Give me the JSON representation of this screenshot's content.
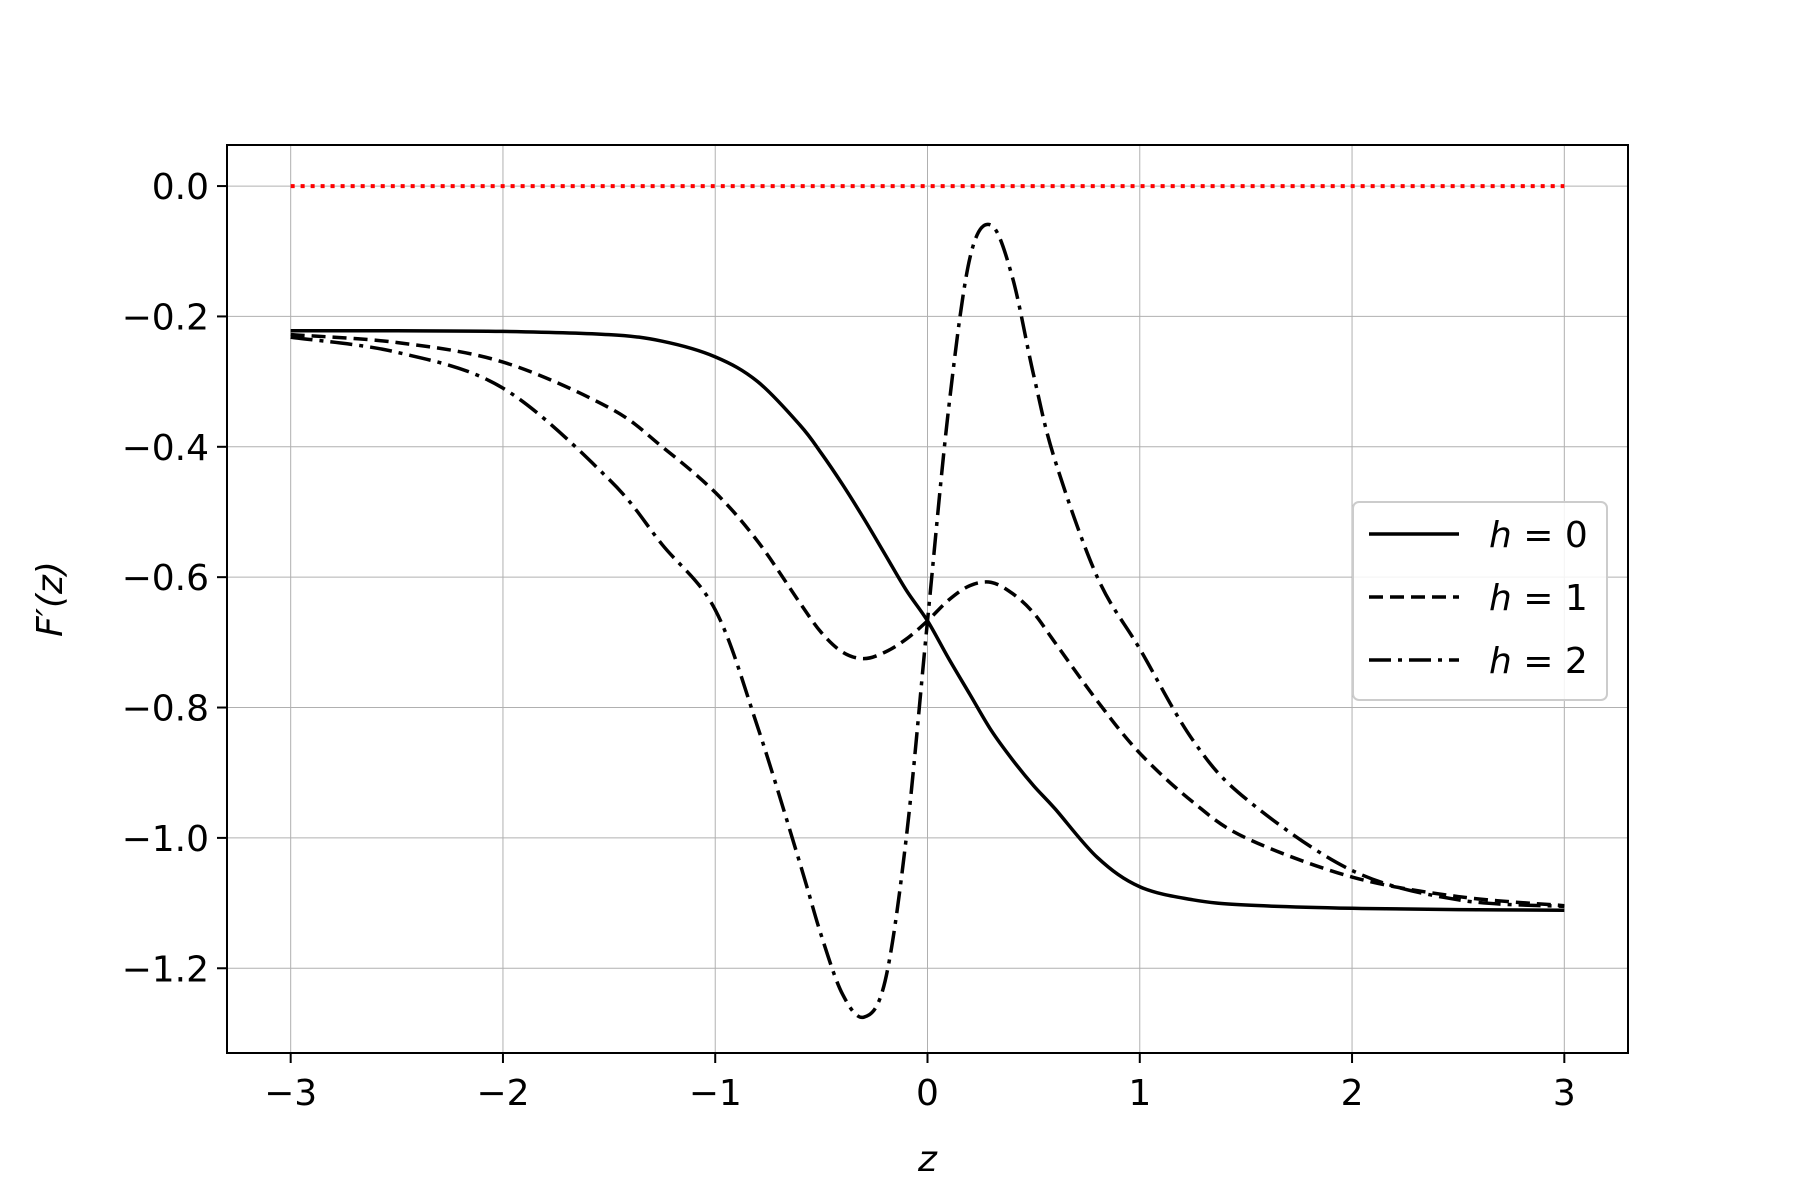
{
  "chart_data": {
    "type": "line",
    "title": "",
    "xlabel": "z",
    "ylabel": "F′(z)",
    "xlim": [
      -3.3,
      3.3
    ],
    "ylim": [
      -1.33,
      0.063
    ],
    "grid": true,
    "legend_position": "center-right",
    "xticks": [
      -3,
      -2,
      -1,
      0,
      1,
      2,
      3
    ],
    "xtick_labels": [
      "−3",
      "−2",
      "−1",
      "0",
      "1",
      "2",
      "3"
    ],
    "yticks": [
      0.0,
      -0.2,
      -0.4,
      -0.6,
      -0.8,
      -1.0,
      -1.2
    ],
    "ytick_labels": [
      "0.0",
      "−0.2",
      "−0.4",
      "−0.6",
      "−0.8",
      "−1.0",
      "−1.2"
    ],
    "x": [
      -3.0,
      -2.5,
      -2.0,
      -1.5,
      -1.25,
      -1.0,
      -0.8,
      -0.6,
      -0.5,
      -0.4,
      -0.3,
      -0.2,
      -0.1,
      0.0,
      0.1,
      0.2,
      0.3,
      0.4,
      0.5,
      0.6,
      0.8,
      1.0,
      1.25,
      1.5,
      2.0,
      2.5,
      3.0
    ],
    "series": [
      {
        "name": "h = 0",
        "style": "solid",
        "color": "#000000",
        "values": [
          -0.222,
          -0.222,
          -0.223,
          -0.228,
          -0.238,
          -0.262,
          -0.3,
          -0.367,
          -0.41,
          -0.458,
          -0.51,
          -0.565,
          -0.62,
          -0.667,
          -0.725,
          -0.78,
          -0.835,
          -0.88,
          -0.92,
          -0.955,
          -1.03,
          -1.075,
          -1.095,
          -1.103,
          -1.108,
          -1.11,
          -1.111
        ]
      },
      {
        "name": "h = 1",
        "style": "dashed",
        "color": "#000000",
        "values": [
          -0.228,
          -0.24,
          -0.27,
          -0.34,
          -0.4,
          -0.47,
          -0.545,
          -0.64,
          -0.685,
          -0.715,
          -0.725,
          -0.715,
          -0.695,
          -0.667,
          -0.635,
          -0.613,
          -0.608,
          -0.625,
          -0.655,
          -0.7,
          -0.79,
          -0.87,
          -0.945,
          -1.0,
          -1.06,
          -1.09,
          -1.104
        ]
      },
      {
        "name": "h = 2",
        "style": "dashdot",
        "color": "#000000",
        "values": [
          -0.232,
          -0.255,
          -0.31,
          -0.45,
          -0.55,
          -0.65,
          -0.83,
          -1.04,
          -1.15,
          -1.24,
          -1.275,
          -1.22,
          -1.0,
          -0.667,
          -0.34,
          -0.11,
          -0.06,
          -0.14,
          -0.29,
          -0.42,
          -0.6,
          -0.71,
          -0.85,
          -0.94,
          -1.05,
          -1.095,
          -1.105
        ]
      },
      {
        "name": "",
        "style": "dotted",
        "color": "#ff0000",
        "values": [
          0.0,
          0.0,
          0.0,
          0.0,
          0.0,
          0.0,
          0.0,
          0.0,
          0.0,
          0.0,
          0.0,
          0.0,
          0.0,
          0.0,
          0.0,
          0.0,
          0.0,
          0.0,
          0.0,
          0.0,
          0.0,
          0.0,
          0.0,
          0.0,
          0.0,
          0.0,
          0.0
        ]
      }
    ],
    "legend": [
      {
        "label_var": "h",
        "label_eq": " = 0",
        "series_index": 0
      },
      {
        "label_var": "h",
        "label_eq": " = 1",
        "series_index": 1
      },
      {
        "label_var": "h",
        "label_eq": " = 2",
        "series_index": 2
      }
    ]
  }
}
